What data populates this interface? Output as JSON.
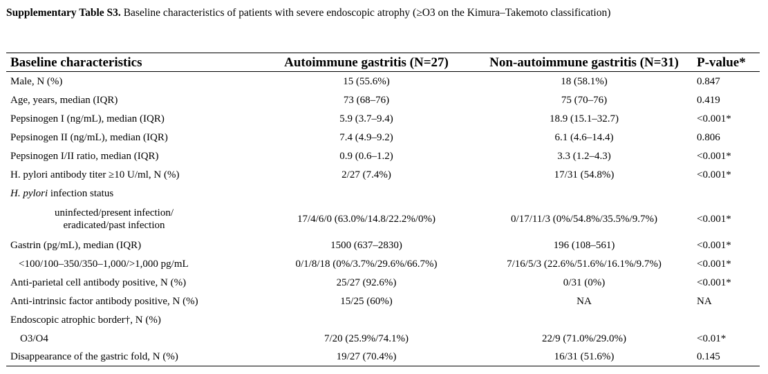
{
  "caption": {
    "lead": "Supplementary Table S3.",
    "text": " Baseline characteristics of patients with severe endoscopic atrophy (≥O3 on the Kimura–Takemoto classification)"
  },
  "table": {
    "headers": [
      "Baseline characteristics",
      "Autoimmune gastritis (N=27)",
      "Non-autoimmune gastritis (N=31)",
      "P-value*"
    ],
    "rows": [
      {
        "label": "Male, N (%)",
        "aig": "15 (55.6%)",
        "naig": "18 (58.1%)",
        "p": "0.847"
      },
      {
        "label": "Age, years, median (IQR)",
        "aig": "73 (68–76)",
        "naig": "75 (70–76)",
        "p": "0.419"
      },
      {
        "label": "Pepsinogen I (ng/mL), median (IQR)",
        "aig": "5.9 (3.7–9.4)",
        "naig": "18.9 (15.1–32.7)",
        "p": "<0.001*"
      },
      {
        "label": "Pepsinogen II (ng/mL), median (IQR)",
        "aig": "7.4 (4.9–9.2)",
        "naig": "6.1 (4.6–14.4)",
        "p": "0.806"
      },
      {
        "label": "Pepsinogen I/II ratio, median (IQR)",
        "aig": "0.9 (0.6–1.2)",
        "naig": "3.3 (1.2–4.3)",
        "p": "<0.001*"
      },
      {
        "label": "H. pylori antibody titer ≥10 U/ml, N (%)",
        "aig": "2/27 (7.4%)",
        "naig": "17/31 (54.8%)",
        "p": "<0.001*"
      },
      {
        "label_italic": "H. pylori",
        "label_rest": " infection status"
      },
      {
        "label_line1": "uninfected/present infection/",
        "label_line2": "eradicated/past infection",
        "aig": "17/4/6/0 (63.0%/14.8/22.2%/0%)",
        "naig": "0/17/11/3 (0%/54.8%/35.5%/9.7%)",
        "p": "<0.001*"
      },
      {
        "label": "Gastrin (pg/mL), median (IQR)",
        "aig": "1500 (637–2830)",
        "naig": "196 (108–561)",
        "p": "<0.001*"
      },
      {
        "label": "<100/100–350/350–1,000/>1,000 pg/mL",
        "aig": "0/1/8/18 (0%/3.7%/29.6%/66.7%)",
        "naig": "7/16/5/3 (22.6%/51.6%/16.1%/9.7%)",
        "p": "<0.001*"
      },
      {
        "label": "Anti-parietal cell antibody positive, N (%)",
        "aig": "25/27 (92.6%)",
        "naig": "0/31 (0%)",
        "p": "<0.001*"
      },
      {
        "label": "Anti-intrinsic factor antibody positive, N (%)",
        "aig": "15/25 (60%)",
        "naig": "NA",
        "p": "NA"
      },
      {
        "label": "Endoscopic atrophic border†, N (%)"
      },
      {
        "label": "O3/O4",
        "aig": "7/20 (25.9%/74.1%)",
        "naig": "22/9 (71.0%/29.0%)",
        "p": "<0.01*"
      },
      {
        "label": "Disappearance of the gastric fold, N (%)",
        "aig": "19/27 (70.4%)",
        "naig": "16/31 (51.6%)",
        "p": "0.145"
      }
    ]
  }
}
